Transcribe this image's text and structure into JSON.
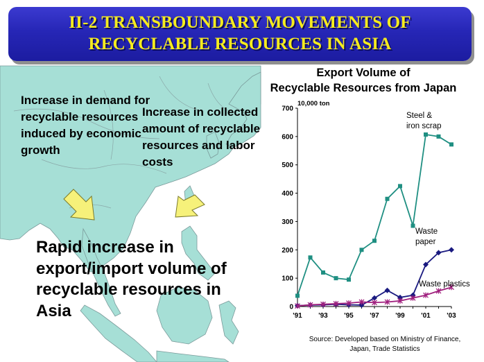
{
  "banner": {
    "line1": "II-2 TRANSBOUNDARY MOVEMENTS OF",
    "line2": "RECYCLABLE RESOURCES IN ASIA"
  },
  "notes": {
    "left": "Increase in demand for recyclable resources induced by economic growth",
    "right": "Increase in collected amount of recyclable resources and labor costs",
    "result": "Rapid increase in export/import volume of recyclable resources in Asia"
  },
  "colors": {
    "banner_text": "#f5eb1e",
    "banner_bg": "#2626b6",
    "sea": "#ffffff",
    "land": "#a6dfd6",
    "arrow": "#f6f17a"
  },
  "chart_data": {
    "type": "line",
    "title": "Export Volume of Recyclable Resources from Japan",
    "unit_label": "10,000 ton",
    "source": "Source: Developed based on Ministry of Finance, Japan, Trade Statistics",
    "x": [
      1991,
      1992,
      1993,
      1994,
      1995,
      1996,
      1997,
      1998,
      1999,
      2000,
      2001,
      2002,
      2003
    ],
    "x_tick_labels": [
      "'91",
      "'93",
      "'95",
      "'97",
      "'99",
      "'01",
      "'03"
    ],
    "x_tick_values": [
      1991,
      1993,
      1995,
      1997,
      1999,
      2001,
      2003
    ],
    "ylim": [
      0,
      700
    ],
    "y_ticks": [
      0,
      100,
      200,
      300,
      400,
      500,
      600,
      700
    ],
    "grid": false,
    "series": [
      {
        "name": "Steel & iron scrap",
        "color": "#1f8f82",
        "marker": "square",
        "values": [
          38,
          173,
          120,
          100,
          95,
          200,
          232,
          380,
          425,
          285,
          607,
          600,
          572
        ]
      },
      {
        "name": "Waste paper",
        "color": "#1a1a80",
        "marker": "diamond",
        "values": [
          3,
          5,
          6,
          8,
          6,
          5,
          30,
          57,
          32,
          40,
          148,
          190,
          200
        ]
      },
      {
        "name": "Waste plastics",
        "color": "#a0207e",
        "marker": "star",
        "values": [
          2,
          6,
          8,
          10,
          12,
          16,
          14,
          16,
          20,
          30,
          40,
          55,
          68
        ]
      }
    ]
  }
}
